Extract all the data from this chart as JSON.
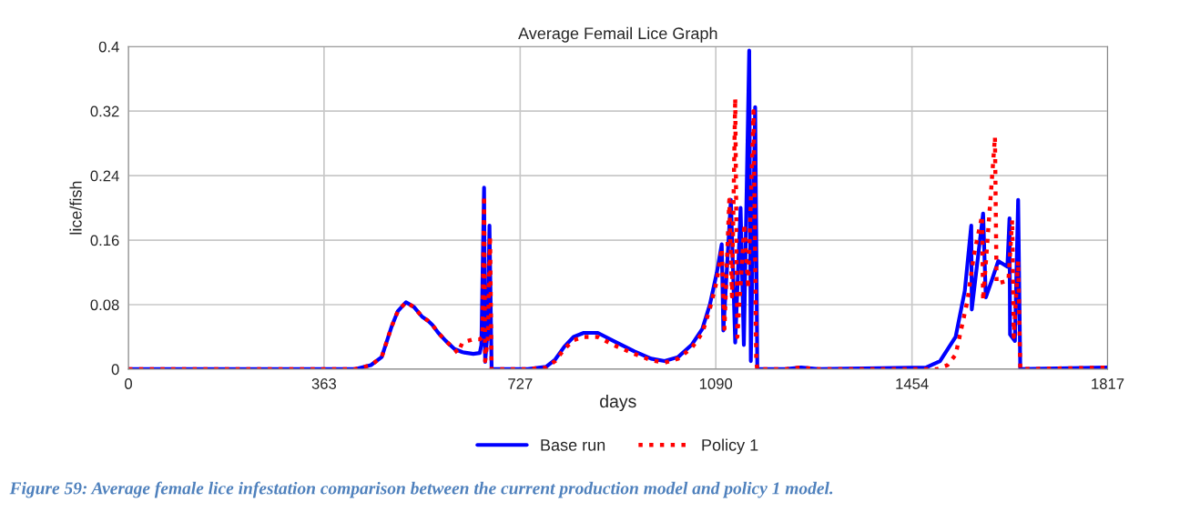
{
  "chart_data": {
    "type": "line",
    "title": "Average Femail Lice Graph",
    "xlabel": "days",
    "ylabel": "lice/fish",
    "xlim": [
      0,
      1817
    ],
    "xticks": [
      0,
      363,
      727,
      1090,
      1454,
      1817
    ],
    "ylim": [
      0,
      0.4
    ],
    "yticks": [
      0,
      0.08,
      0.16,
      0.24,
      0.32,
      0.4
    ],
    "grid": true,
    "legend": "bottom",
    "marker": "none",
    "annotations": [
      "Figure 59: Average female lice infestation comparison between the current production model and policy 1 model."
    ],
    "series": [
      {
        "name": "Base run",
        "color": "#0000ff",
        "line_style": "solid",
        "x": [
          0,
          420,
          450,
          470,
          488,
          500,
          515,
          530,
          545,
          556,
          564,
          575,
          589,
          605,
          620,
          640,
          652,
          655,
          660,
          662,
          667,
          670,
          674,
          741,
          775,
          792,
          809,
          826,
          845,
          871,
          900,
          939,
          970,
          995,
          1020,
          1045,
          1065,
          1079,
          1092,
          1101,
          1104,
          1118,
          1126,
          1136,
          1142,
          1152,
          1155,
          1163,
          1167,
          1220,
          1248,
          1280,
          1480,
          1506,
          1535,
          1552,
          1564,
          1565,
          1586,
          1591,
          1602,
          1614,
          1631,
          1635,
          1636,
          1645,
          1651,
          1655,
          1817
        ],
        "values": [
          0,
          0,
          0.005,
          0.015,
          0.052,
          0.072,
          0.083,
          0.077,
          0.065,
          0.06,
          0.055,
          0.045,
          0.035,
          0.025,
          0.021,
          0.019,
          0.02,
          0.03,
          0.225,
          0.009,
          0.05,
          0.178,
          0,
          0,
          0.003,
          0.012,
          0.028,
          0.04,
          0.045,
          0.045,
          0.035,
          0.022,
          0.013,
          0.01,
          0.015,
          0.03,
          0.05,
          0.08,
          0.12,
          0.155,
          0.048,
          0.21,
          0.033,
          0.2,
          0.03,
          0.395,
          0.01,
          0.325,
          0,
          0,
          0.002,
          0,
          0.002,
          0.01,
          0.04,
          0.097,
          0.178,
          0.074,
          0.193,
          0.089,
          0.11,
          0.134,
          0.127,
          0.187,
          0.043,
          0.035,
          0.21,
          0,
          0.002
        ]
      },
      {
        "name": "Policy 1",
        "color": "#ff0000",
        "line_style": "dotted",
        "x": [
          0,
          420,
          450,
          470,
          488,
          500,
          515,
          530,
          545,
          556,
          564,
          575,
          589,
          605,
          611,
          620,
          640,
          652,
          657,
          660,
          662,
          667,
          671,
          674,
          741,
          775,
          792,
          809,
          826,
          845,
          871,
          900,
          939,
          970,
          995,
          1020,
          1045,
          1065,
          1079,
          1092,
          1101,
          1106,
          1115,
          1120,
          1126,
          1130,
          1143,
          1150,
          1160,
          1165,
          1167,
          1220,
          1248,
          1280,
          1501,
          1520,
          1535,
          1557,
          1569,
          1584,
          1586,
          1608,
          1611,
          1633,
          1640,
          1643,
          1651,
          1655,
          1817
        ],
        "values": [
          0,
          0,
          0.005,
          0.015,
          0.052,
          0.072,
          0.083,
          0.077,
          0.065,
          0.06,
          0.055,
          0.045,
          0.035,
          0.025,
          0.02,
          0.033,
          0.037,
          0.037,
          0.04,
          0.215,
          0.01,
          0.04,
          0.165,
          0,
          0,
          0.002,
          0.01,
          0.025,
          0.036,
          0.04,
          0.04,
          0.03,
          0.019,
          0.011,
          0.008,
          0.013,
          0.026,
          0.045,
          0.075,
          0.11,
          0.15,
          0.05,
          0.21,
          0.09,
          0.336,
          0.04,
          0.18,
          0.1,
          0.32,
          0.01,
          0,
          0,
          0.002,
          0,
          0,
          0.005,
          0.018,
          0.085,
          0.142,
          0.19,
          0.085,
          0.288,
          0.106,
          0.11,
          0.185,
          0.04,
          0.134,
          0,
          0.002
        ]
      }
    ]
  }
}
